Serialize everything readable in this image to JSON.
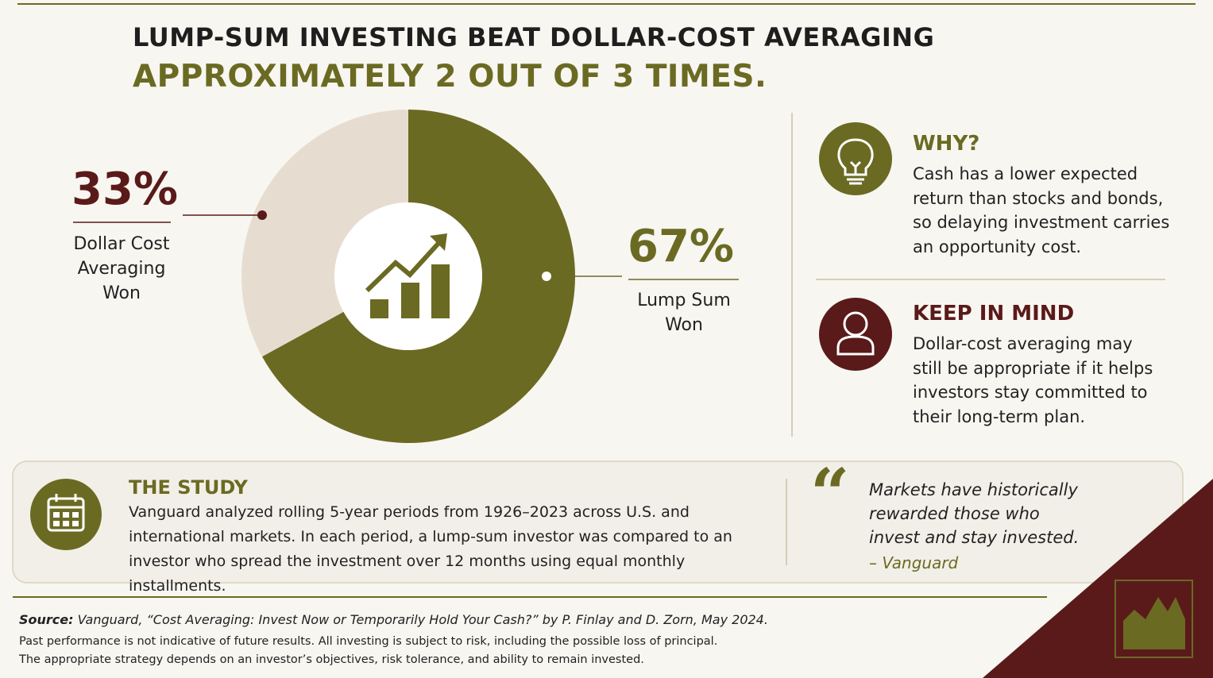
{
  "header": {
    "title_line1": "LUMP-SUM INVESTING BEAT DOLLAR-COST AVERAGING",
    "title_line2": "APPROXIMATELY 2 OUT OF 3 TIMES."
  },
  "chart_data": {
    "type": "donut",
    "categories": [
      "Lump Sum Won",
      "Dollar Cost Averaging Won"
    ],
    "values": [
      67,
      33
    ],
    "value_labels": [
      "67%",
      "33%"
    ],
    "colors": [
      "#6b6a22",
      "#e6ddd0"
    ]
  },
  "panels": [
    {
      "title": "WHY?",
      "text": "Cash has a lower expected return than stocks and bonds, so delaying investment carries an opportunity cost."
    },
    {
      "title": "KEEP IN MIND",
      "text": "Dollar-cost averaging may still be appropriate if it helps investors stay committed to their long-term plan."
    }
  ],
  "study": {
    "title": "THE STUDY",
    "text": "Vanguard analyzed rolling 5-year periods from 1926–2023 across U.S. and international markets. In each period, a lump-sum investor was compared to an investor who spread the investment over 12 months using equal monthly installments."
  },
  "quote": {
    "text": "Markets have historically rewarded those who invest and stay invested.",
    "attribution": "– Vanguard"
  },
  "footer": {
    "source_label": "Source:",
    "source": "Vanguard, “Cost Averaging: Invest Now or Temporarily Hold Your Cash?” by P. Finlay and D. Zorn, May 2024.",
    "disclaimer": [
      "Past performance is not indicative of future results. All investing is subject to risk, including the possible loss of principal.",
      "The appropriate strategy depends on an investor’s objectives, risk tolerance, and ability to remain invested."
    ]
  }
}
